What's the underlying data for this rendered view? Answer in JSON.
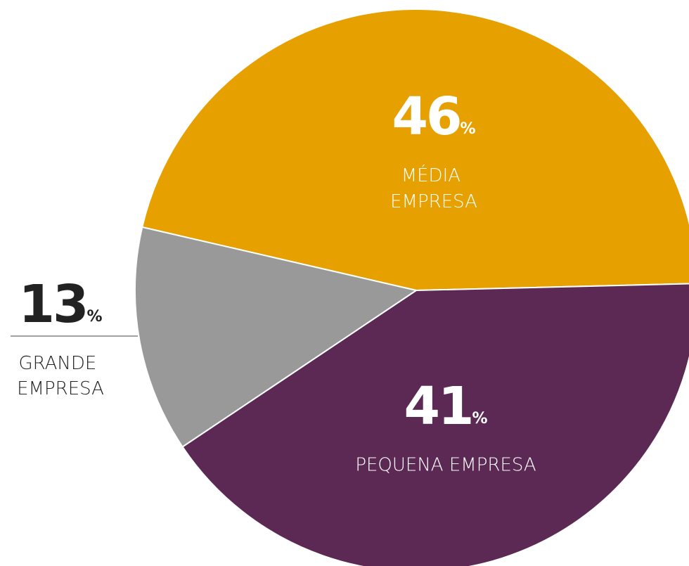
{
  "chart_data": {
    "type": "pie",
    "categories": [
      "MÉDIA EMPRESA",
      "PEQUENA EMPRESA",
      "GRANDE EMPRESA"
    ],
    "values": [
      46,
      41,
      13
    ],
    "value_labels": [
      "46%",
      "41%",
      "13%"
    ],
    "colors": [
      "#e6a000",
      "#5c2854",
      "#999999"
    ]
  }
}
